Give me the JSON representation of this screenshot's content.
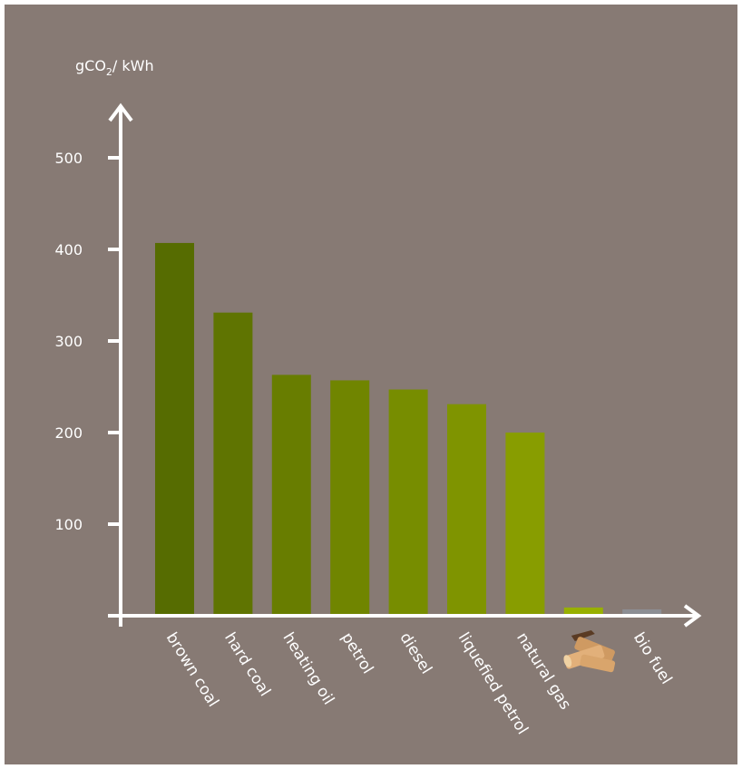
{
  "chart_data": {
    "type": "bar",
    "ylabel": "gCO2/kWh",
    "ylabel_parts": {
      "prefix": "gCO",
      "subscript": "2",
      "suffix": "/ kWh"
    },
    "categories": [
      "brown coal",
      "hard coal",
      "heating oil",
      "petrol",
      "diesel",
      "liquefied petrol",
      "natural gas",
      "",
      "bio fuel"
    ],
    "category_icons": [
      "",
      "",
      "",
      "",
      "",
      "",
      "",
      "wood-logs-icon",
      ""
    ],
    "values": [
      407,
      331,
      263,
      257,
      247,
      231,
      200,
      9,
      7
    ],
    "bar_colors": [
      "#566c01",
      "#5f7401",
      "#687d00",
      "#708500",
      "#778d00",
      "#7f9400",
      "#889d00",
      "#98b000",
      "#8c8e94"
    ],
    "yticks": [
      100,
      200,
      300,
      400,
      500
    ],
    "ylim": [
      0,
      540
    ],
    "grid": false,
    "legend": "none"
  },
  "colors": {
    "background": "#877a74",
    "axis": "#ffffff"
  }
}
